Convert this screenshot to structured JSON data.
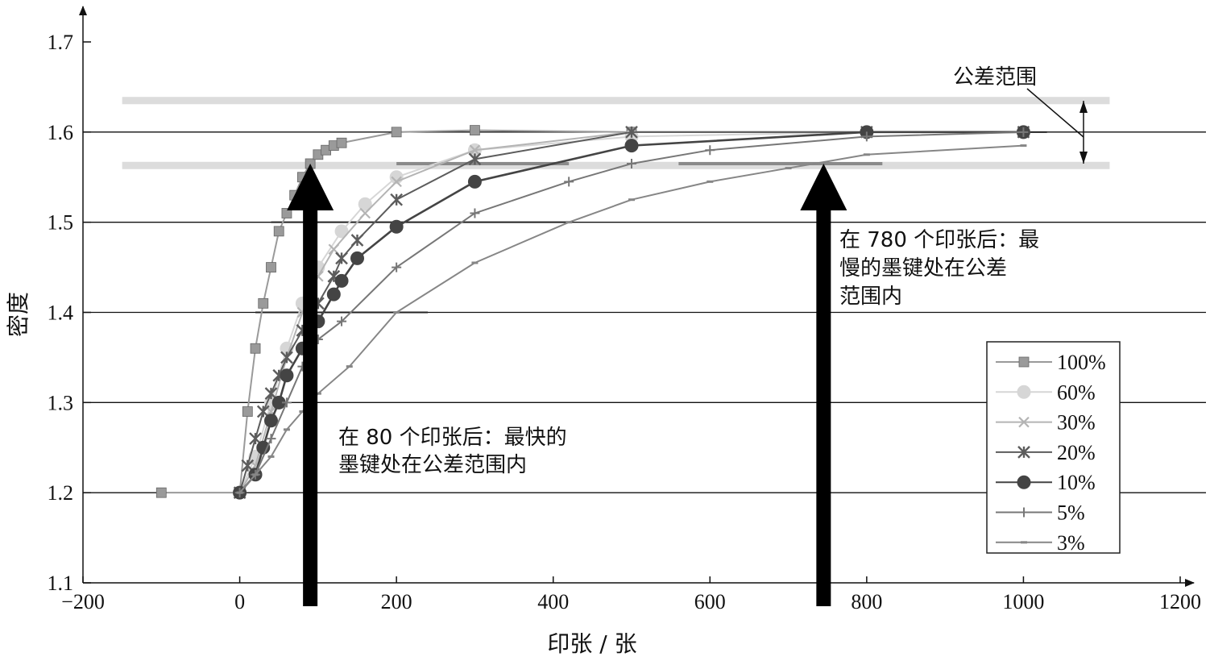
{
  "chart_data": {
    "type": "line",
    "title": "",
    "xlabel": "印张 / 张",
    "ylabel": "密度",
    "xlim": [
      -200,
      1200
    ],
    "ylim": [
      1.1,
      1.7
    ],
    "x_ticks": [
      -200,
      0,
      200,
      400,
      600,
      800,
      1000,
      1200
    ],
    "x_tick_labels": [
      "−200",
      "0",
      "200",
      "400",
      "600",
      "800",
      "1000",
      "1200"
    ],
    "y_ticks": [
      1.1,
      1.2,
      1.3,
      1.4,
      1.5,
      1.6,
      1.7
    ],
    "y_tick_labels": [
      "1.1",
      "1.2",
      "1.3",
      "1.4",
      "1.5",
      "1.6",
      "1.7"
    ],
    "grid_y": [
      1.2,
      1.3,
      1.4,
      1.5,
      1.6
    ],
    "legend_position": "lower-right",
    "tolerance_band": {
      "upper": 1.635,
      "lower": 1.563,
      "x_range": [
        -150,
        1110
      ],
      "label": "公差范围"
    },
    "series": [
      {
        "name": "100%",
        "marker": "square",
        "color": "#9a9a9a",
        "x": [
          -100,
          0,
          10,
          20,
          30,
          40,
          50,
          60,
          70,
          80,
          90,
          100,
          110,
          120,
          130,
          200,
          300,
          500,
          800,
          1000
        ],
        "y": [
          1.2,
          1.2,
          1.29,
          1.36,
          1.41,
          1.45,
          1.49,
          1.51,
          1.53,
          1.55,
          1.565,
          1.575,
          1.58,
          1.585,
          1.588,
          1.6,
          1.602,
          1.6,
          1.6,
          1.6
        ]
      },
      {
        "name": "60%",
        "marker": "circle",
        "color": "#d6d6d6",
        "x": [
          0,
          20,
          40,
          60,
          80,
          100,
          130,
          160,
          200,
          300,
          500,
          800,
          1000
        ],
        "y": [
          1.2,
          1.24,
          1.3,
          1.36,
          1.41,
          1.45,
          1.49,
          1.52,
          1.55,
          1.58,
          1.595,
          1.6,
          1.6
        ]
      },
      {
        "name": "30%",
        "marker": "x",
        "color": "#b4b4b4",
        "x": [
          0,
          20,
          40,
          60,
          80,
          100,
          120,
          160,
          200,
          300,
          500,
          800,
          1000
        ],
        "y": [
          1.2,
          1.23,
          1.29,
          1.35,
          1.4,
          1.44,
          1.47,
          1.51,
          1.545,
          1.58,
          1.6,
          1.6,
          1.6
        ]
      },
      {
        "name": "20%",
        "marker": "star",
        "color": "#5c5c5c",
        "x": [
          0,
          10,
          20,
          30,
          40,
          50,
          60,
          80,
          100,
          120,
          130,
          150,
          200,
          300,
          500,
          800,
          1000
        ],
        "y": [
          1.2,
          1.23,
          1.26,
          1.29,
          1.31,
          1.33,
          1.35,
          1.38,
          1.41,
          1.44,
          1.46,
          1.48,
          1.525,
          1.57,
          1.6,
          1.6,
          1.6
        ]
      },
      {
        "name": "10%",
        "marker": "circle",
        "color": "#444444",
        "x": [
          0,
          20,
          30,
          40,
          50,
          60,
          80,
          100,
          120,
          130,
          150,
          200,
          300,
          500,
          800,
          1000
        ],
        "y": [
          1.2,
          1.22,
          1.25,
          1.28,
          1.3,
          1.33,
          1.36,
          1.39,
          1.42,
          1.435,
          1.46,
          1.495,
          1.545,
          1.585,
          1.6,
          1.6
        ]
      },
      {
        "name": "5%",
        "marker": "plus",
        "color": "#777777",
        "x": [
          0,
          20,
          40,
          60,
          80,
          100,
          130,
          200,
          300,
          420,
          500,
          600,
          800,
          1000
        ],
        "y": [
          1.2,
          1.22,
          1.26,
          1.3,
          1.34,
          1.37,
          1.39,
          1.45,
          1.51,
          1.545,
          1.565,
          1.58,
          1.595,
          1.6
        ]
      },
      {
        "name": "3%",
        "marker": "dash",
        "color": "#868686",
        "x": [
          0,
          20,
          40,
          60,
          80,
          100,
          140,
          200,
          300,
          420,
          500,
          600,
          700,
          800,
          1000
        ],
        "y": [
          1.2,
          1.22,
          1.24,
          1.27,
          1.29,
          1.31,
          1.34,
          1.4,
          1.455,
          1.5,
          1.525,
          1.545,
          1.56,
          1.575,
          1.585
        ]
      }
    ],
    "annotations": [
      {
        "text_lines": [
          "在 80 个印张后：最快的",
          "墨键处在公差范围内"
        ],
        "arrow_x": 90,
        "arrow_to_y": 1.565
      },
      {
        "text_lines": [
          "在 780 个印张后：最",
          "慢的墨键处在公差",
          "范围内"
        ],
        "arrow_x": 745,
        "arrow_to_y": 1.565
      }
    ]
  }
}
